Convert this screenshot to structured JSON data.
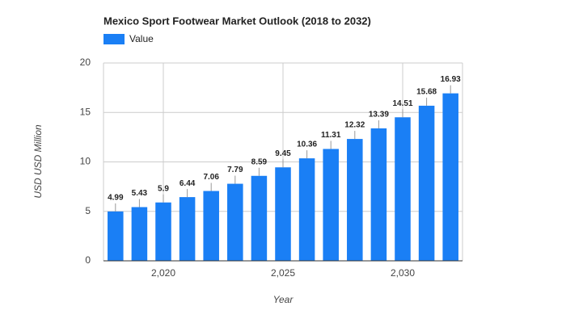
{
  "chart_data": {
    "type": "bar",
    "title": "Mexico Sport Footwear Market Outlook (2018 to 2032)",
    "x_label": "Year",
    "y_label": "USD USD Million",
    "x": [
      2018,
      2019,
      2020,
      2021,
      2022,
      2023,
      2024,
      2025,
      2026,
      2027,
      2028,
      2029,
      2030,
      2031,
      2032
    ],
    "series": [
      {
        "name": "Value",
        "color": "#1a7ff5",
        "values": [
          4.99,
          5.43,
          5.9,
          6.44,
          7.06,
          7.79,
          8.59,
          9.45,
          10.36,
          11.31,
          12.32,
          13.39,
          14.51,
          15.68,
          16.93
        ]
      }
    ],
    "xlim": [
      2017.5,
      2032.5
    ],
    "xticks": [
      {
        "value": 2020,
        "label": "2,020"
      },
      {
        "value": 2025,
        "label": "2,025"
      },
      {
        "value": 2030,
        "label": "2,030"
      }
    ],
    "ylim": [
      0,
      20
    ],
    "yticks": [
      0,
      5,
      10,
      15,
      20
    ],
    "grid": true,
    "legend": "top-left"
  }
}
